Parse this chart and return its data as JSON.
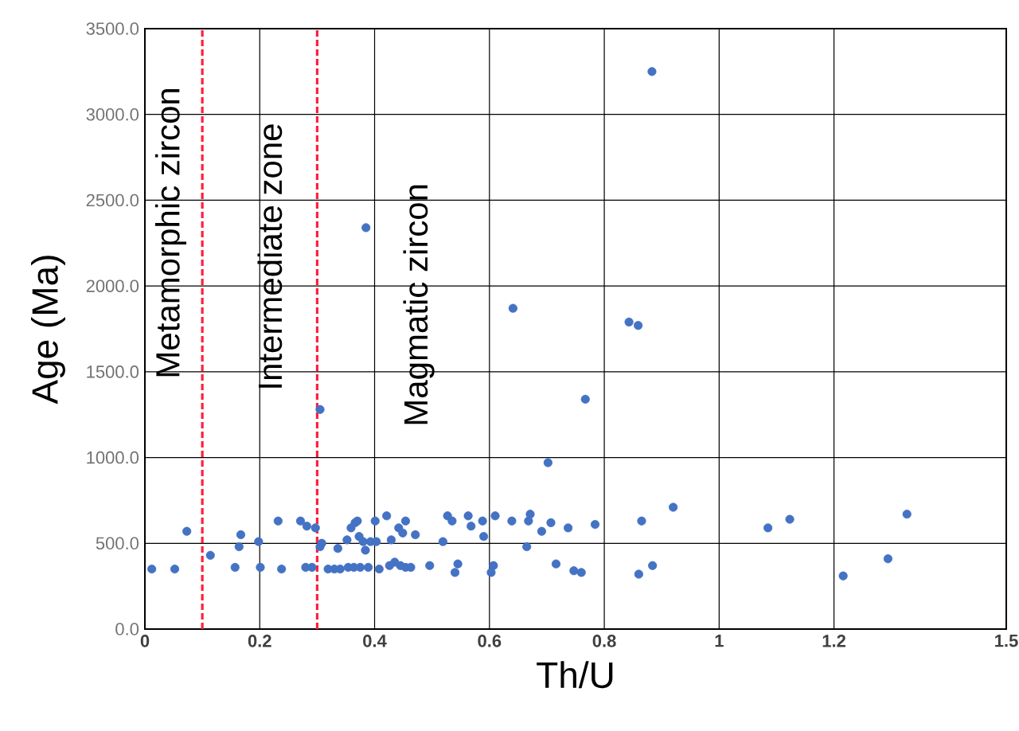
{
  "chart_data": {
    "type": "scatter",
    "xlabel": "Th/U",
    "ylabel": "Age (Ma)",
    "xlim": [
      0,
      1.5
    ],
    "ylim": [
      0,
      3500
    ],
    "xticks": [
      0,
      0.2,
      0.4,
      0.6,
      0.8,
      1,
      1.2,
      1.5
    ],
    "yticks": [
      {
        "value": 0,
        "label": "0.0"
      },
      {
        "value": 500,
        "label": "500.0"
      },
      {
        "value": 1000,
        "label": "1000.0"
      },
      {
        "value": 1500,
        "label": "1500.0"
      },
      {
        "value": 2000,
        "label": "2000.0"
      },
      {
        "value": 2500,
        "label": "2500.0"
      },
      {
        "value": 3000,
        "label": "3000.0"
      },
      {
        "value": 3500,
        "label": "3500.0"
      }
    ],
    "grid": true,
    "ref_lines": [
      {
        "axis": "x",
        "value": 0.1,
        "color": "#ff1f3f",
        "line_style": "dashed"
      },
      {
        "axis": "x",
        "value": 0.3,
        "color": "#ff1f3f",
        "line_style": "dashed"
      }
    ],
    "annotations": [
      "Metamorphic zircon",
      "Intermediate zone",
      "Magmatic zircon"
    ],
    "series": [
      {
        "color": "#4472c4",
        "x": [
          0.012,
          0.052,
          0.073,
          0.114,
          0.157,
          0.164,
          0.167,
          0.198,
          0.201,
          0.232,
          0.238,
          0.271,
          0.28,
          0.282,
          0.291,
          0.297,
          0.305,
          0.305,
          0.308,
          0.319,
          0.33,
          0.336,
          0.34,
          0.352,
          0.354,
          0.359,
          0.364,
          0.366,
          0.37,
          0.373,
          0.375,
          0.38,
          0.384,
          0.389,
          0.393,
          0.401,
          0.403,
          0.408,
          0.421,
          0.426,
          0.429,
          0.435,
          0.442,
          0.445,
          0.449,
          0.454,
          0.454,
          0.463,
          0.471,
          0.496,
          0.519,
          0.527,
          0.535,
          0.54,
          0.545,
          0.563,
          0.568,
          0.588,
          0.59,
          0.603,
          0.607,
          0.61,
          0.639,
          0.641,
          0.665,
          0.668,
          0.671,
          0.691,
          0.702,
          0.707,
          0.716,
          0.737,
          0.747,
          0.76,
          0.767,
          0.784,
          0.843,
          0.859,
          0.86,
          0.865,
          0.883,
          0.884,
          0.92,
          1.085,
          1.123,
          1.216,
          1.294,
          1.327,
          0.385
        ],
        "values": [
          350,
          350,
          570,
          430,
          360,
          480,
          550,
          510,
          360,
          630,
          350,
          630,
          360,
          600,
          360,
          590,
          1280,
          480,
          500,
          350,
          350,
          470,
          350,
          520,
          360,
          590,
          360,
          620,
          630,
          540,
          360,
          510,
          460,
          360,
          510,
          630,
          510,
          350,
          660,
          370,
          520,
          390,
          590,
          370,
          560,
          630,
          360,
          360,
          550,
          370,
          510,
          660,
          630,
          330,
          380,
          660,
          600,
          630,
          540,
          330,
          370,
          660,
          630,
          1870,
          480,
          630,
          670,
          570,
          970,
          620,
          380,
          590,
          340,
          330,
          1340,
          610,
          1790,
          1770,
          320,
          630,
          3250,
          370,
          710,
          590,
          640,
          310,
          410,
          670,
          2340
        ]
      }
    ]
  }
}
